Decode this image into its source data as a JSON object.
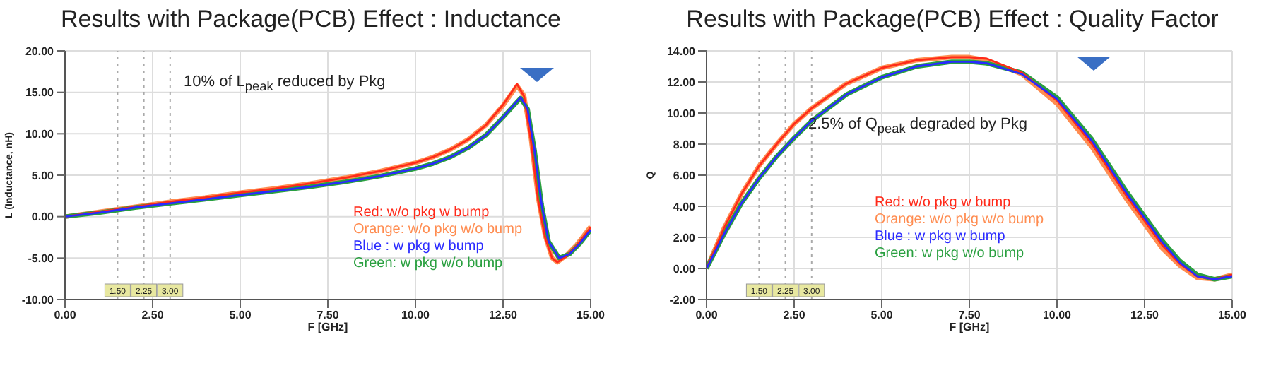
{
  "chart_data": [
    {
      "type": "line",
      "title": "Results with Package(PCB) Effect : Inductance",
      "xlabel": "F [GHz]",
      "ylabel": "L (Inductance, nH)",
      "xlim": [
        0,
        15
      ],
      "xticks": [
        {
          "value": 0,
          "label": "0.00"
        },
        {
          "value": 2.5,
          "label": "2.50"
        },
        {
          "value": 5,
          "label": "5.00"
        },
        {
          "value": 7.5,
          "label": "7.50"
        },
        {
          "value": 10,
          "label": "10.00"
        },
        {
          "value": 12.5,
          "label": "12.50"
        },
        {
          "value": 15,
          "label": "15.00"
        }
      ],
      "ylim": [
        -10,
        20
      ],
      "yticks": [
        {
          "value": -10,
          "label": "-10.00"
        },
        {
          "value": -5,
          "label": "-5.00"
        },
        {
          "value": 0,
          "label": "0.00"
        },
        {
          "value": 5,
          "label": "5.00"
        },
        {
          "value": 10,
          "label": "10.00"
        },
        {
          "value": 15,
          "label": "15.00"
        },
        {
          "value": 20,
          "label": "20.00"
        }
      ],
      "grid": true,
      "marker": "none",
      "legend": "right",
      "annotations": [
        "10% of L$_{peak}$ reduced by Pkg"
      ],
      "ref_lines": [
        {
          "axis": "x",
          "value": 1.5,
          "label": "1.50",
          "color": "#aaaaaa",
          "line_style": "dotted"
        },
        {
          "axis": "x",
          "value": 2.25,
          "label": "2.25",
          "color": "#aaaaaa",
          "line_style": "dotted"
        },
        {
          "axis": "x",
          "value": 3,
          "label": "3.00",
          "color": "#aaaaaa",
          "line_style": "dotted"
        }
      ],
      "series": [
        {
          "name": "Red: w/o pkg w bump",
          "color": "#ff2a1a",
          "x": [
            0,
            1,
            2,
            3,
            4,
            5,
            6,
            7,
            8,
            9,
            10,
            10.5,
            11,
            11.5,
            12,
            12.5,
            12.9,
            13.1,
            13.3,
            13.5,
            13.7,
            13.9,
            14.05,
            14.3,
            14.6,
            15
          ],
          "values": [
            0,
            0.6,
            1.2,
            1.8,
            2.3,
            2.9,
            3.4,
            4,
            4.7,
            5.5,
            6.5,
            7.2,
            8.1,
            9.3,
            11,
            13.5,
            16,
            14.5,
            9,
            2,
            -2.5,
            -5,
            -5.5,
            -4.8,
            -3.5,
            -1.3
          ]
        },
        {
          "name": "Orange: w/o pkg w/o bump",
          "color": "#ff8c50",
          "x": [
            0,
            1,
            2,
            3,
            4,
            5,
            6,
            7,
            8,
            9,
            10,
            10.5,
            11,
            11.5,
            12,
            12.5,
            12.9,
            13.1,
            13.3,
            13.5,
            13.7,
            13.9,
            14.05,
            14.3,
            14.6,
            15
          ],
          "values": [
            0,
            0.6,
            1.2,
            1.8,
            2.3,
            2.9,
            3.4,
            4,
            4.7,
            5.5,
            6.5,
            7.2,
            8.1,
            9.3,
            11,
            13.4,
            15.8,
            14.6,
            9.3,
            2.3,
            -2.3,
            -5,
            -5.5,
            -4.7,
            -3.4,
            -1.2
          ]
        },
        {
          "name": "Blue : w pkg w bump",
          "color": "#2a2aff",
          "x": [
            0,
            1,
            2,
            3,
            4,
            5,
            6,
            7,
            8,
            9,
            10,
            10.5,
            11,
            11.5,
            12,
            12.5,
            13,
            13.2,
            13.4,
            13.6,
            13.8,
            14.1,
            14.4,
            14.7,
            15
          ],
          "values": [
            0,
            0.5,
            1.1,
            1.6,
            2.1,
            2.6,
            3.1,
            3.6,
            4.2,
            4.9,
            5.8,
            6.4,
            7.2,
            8.3,
            9.8,
            12,
            14.4,
            13,
            8,
            1.5,
            -3,
            -5,
            -4.5,
            -3.2,
            -1.6
          ]
        },
        {
          "name": "Green: w pkg w/o bump",
          "color": "#2aa040",
          "x": [
            0,
            1,
            2,
            3,
            4,
            5,
            6,
            7,
            8,
            9,
            10,
            10.5,
            11,
            11.5,
            12,
            12.5,
            13,
            13.2,
            13.4,
            13.6,
            13.8,
            14.1,
            14.4,
            14.7,
            15
          ],
          "values": [
            0,
            0.5,
            1.1,
            1.6,
            2.1,
            2.6,
            3.1,
            3.6,
            4.2,
            4.9,
            5.8,
            6.4,
            7.2,
            8.3,
            9.8,
            12,
            14.3,
            13,
            8,
            1.5,
            -3,
            -5,
            -4.5,
            -3.2,
            -1.6
          ]
        }
      ]
    },
    {
      "type": "line",
      "title": "Results with Package(PCB) Effect : Quality Factor",
      "xlabel": "F [GHz]",
      "ylabel": "Q",
      "xlim": [
        0,
        15
      ],
      "xticks": [
        {
          "value": 0,
          "label": "0.00"
        },
        {
          "value": 2.5,
          "label": "2.50"
        },
        {
          "value": 5,
          "label": "5.00"
        },
        {
          "value": 7.5,
          "label": "7.50"
        },
        {
          "value": 10,
          "label": "10.00"
        },
        {
          "value": 12.5,
          "label": "12.50"
        },
        {
          "value": 15,
          "label": "15.00"
        }
      ],
      "ylim": [
        -2,
        14
      ],
      "yticks": [
        {
          "value": -2,
          "label": "-2.00"
        },
        {
          "value": 0,
          "label": "0.00"
        },
        {
          "value": 2,
          "label": "2.00"
        },
        {
          "value": 4,
          "label": "4.00"
        },
        {
          "value": 6,
          "label": "6.00"
        },
        {
          "value": 8,
          "label": "8.00"
        },
        {
          "value": 10,
          "label": "10.00"
        },
        {
          "value": 12,
          "label": "12.00"
        },
        {
          "value": 14,
          "label": "14.00"
        }
      ],
      "grid": true,
      "marker": "none",
      "legend": "bottom",
      "annotations": [
        "2.5% of Q$_{peak}$ degraded by Pkg"
      ],
      "ref_lines": [
        {
          "axis": "x",
          "value": 1.5,
          "label": "1.50",
          "color": "#aaaaaa",
          "line_style": "dotted"
        },
        {
          "axis": "x",
          "value": 2.25,
          "label": "2.25",
          "color": "#aaaaaa",
          "line_style": "dotted"
        },
        {
          "axis": "x",
          "value": 3,
          "label": "3.00",
          "color": "#aaaaaa",
          "line_style": "dotted"
        }
      ],
      "series": [
        {
          "name": "Red: w/o pkg w bump",
          "color": "#ff2a1a",
          "x": [
            0,
            0.5,
            1,
            1.5,
            2,
            2.5,
            3,
            4,
            5,
            6,
            7,
            7.5,
            8,
            9,
            10,
            11,
            12,
            13,
            13.5,
            14,
            14.5,
            15
          ],
          "values": [
            0,
            2.6,
            4.8,
            6.6,
            8,
            9.3,
            10.3,
            11.9,
            12.9,
            13.4,
            13.6,
            13.6,
            13.5,
            12.6,
            10.8,
            8,
            4.6,
            1.5,
            0.3,
            -0.5,
            -0.7,
            -0.4
          ]
        },
        {
          "name": "Orange: w/o pkg w/o bump",
          "color": "#ff8c50",
          "x": [
            0,
            0.5,
            1,
            1.5,
            2,
            2.5,
            3,
            4,
            5,
            6,
            7,
            7.5,
            8,
            9,
            10,
            11,
            12,
            13,
            13.5,
            14,
            14.5,
            15
          ],
          "values": [
            0,
            2.6,
            4.8,
            6.6,
            8,
            9.3,
            10.3,
            11.9,
            12.9,
            13.4,
            13.6,
            13.6,
            13.4,
            12.5,
            10.6,
            7.8,
            4.4,
            1.3,
            0.2,
            -0.6,
            -0.7,
            -0.4
          ]
        },
        {
          "name": "Blue : w pkg w bump",
          "color": "#2a2aff",
          "x": [
            0,
            0.5,
            1,
            1.5,
            2,
            2.5,
            3,
            4,
            5,
            6,
            7,
            7.5,
            8,
            9,
            10,
            11,
            12,
            13,
            13.5,
            14,
            14.5,
            15
          ],
          "values": [
            0,
            2.2,
            4.2,
            5.8,
            7.2,
            8.4,
            9.5,
            11.2,
            12.3,
            13,
            13.3,
            13.3,
            13.2,
            12.5,
            10.9,
            8.2,
            4.8,
            1.7,
            0.4,
            -0.5,
            -0.7,
            -0.5
          ]
        },
        {
          "name": "Green: w pkg w/o bump",
          "color": "#2aa040",
          "x": [
            0,
            0.5,
            1,
            1.5,
            2,
            2.5,
            3,
            4,
            5,
            6,
            7,
            7.5,
            8,
            9,
            10,
            11,
            12,
            13,
            13.5,
            14,
            14.5,
            15
          ],
          "values": [
            0,
            2.2,
            4.2,
            5.8,
            7.2,
            8.4,
            9.5,
            11.2,
            12.3,
            13,
            13.3,
            13.3,
            13.2,
            12.6,
            11,
            8.3,
            4.9,
            1.8,
            0.5,
            -0.4,
            -0.7,
            -0.5
          ]
        }
      ]
    }
  ]
}
